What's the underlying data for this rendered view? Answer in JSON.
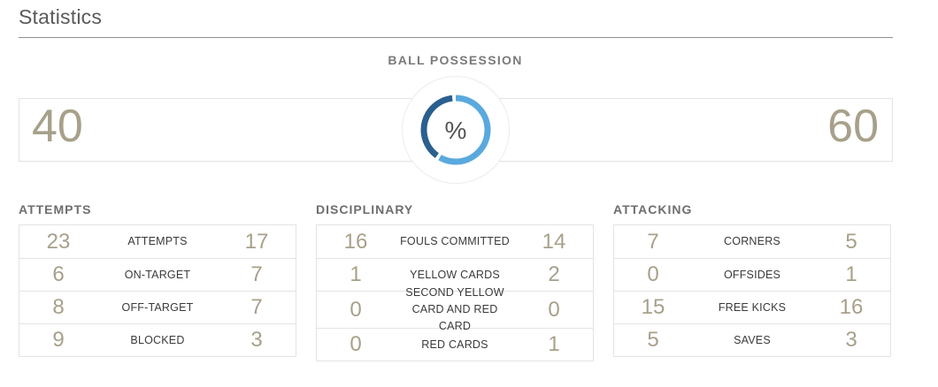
{
  "title": "Statistics",
  "possession": {
    "label": "BALL POSSESSION",
    "home": "40",
    "away": "60",
    "symbol": "%",
    "home_fraction": 0.4,
    "colors": {
      "home": "#2a5f8f",
      "away": "#5aa9de"
    }
  },
  "sections": [
    {
      "title": "ATTEMPTS",
      "rows": [
        {
          "home": "23",
          "label": "ATTEMPTS",
          "away": "17"
        },
        {
          "home": "6",
          "label": "ON-TARGET",
          "away": "7"
        },
        {
          "home": "8",
          "label": "OFF-TARGET",
          "away": "7"
        },
        {
          "home": "9",
          "label": "BLOCKED",
          "away": "3"
        }
      ]
    },
    {
      "title": "DISCIPLINARY",
      "rows": [
        {
          "home": "16",
          "label": "FOULS COMMITTED",
          "away": "14"
        },
        {
          "home": "1",
          "label": "YELLOW CARDS",
          "away": "2"
        },
        {
          "home": "0",
          "label": "SECOND YELLOW CARD AND RED CARD",
          "away": "0"
        },
        {
          "home": "0",
          "label": "RED CARDS",
          "away": "1"
        }
      ]
    },
    {
      "title": "ATTACKING",
      "rows": [
        {
          "home": "7",
          "label": "CORNERS",
          "away": "5"
        },
        {
          "home": "0",
          "label": "OFFSIDES",
          "away": "1"
        },
        {
          "home": "15",
          "label": "FREE KICKS",
          "away": "16"
        },
        {
          "home": "5",
          "label": "SAVES",
          "away": "3"
        }
      ]
    }
  ]
}
